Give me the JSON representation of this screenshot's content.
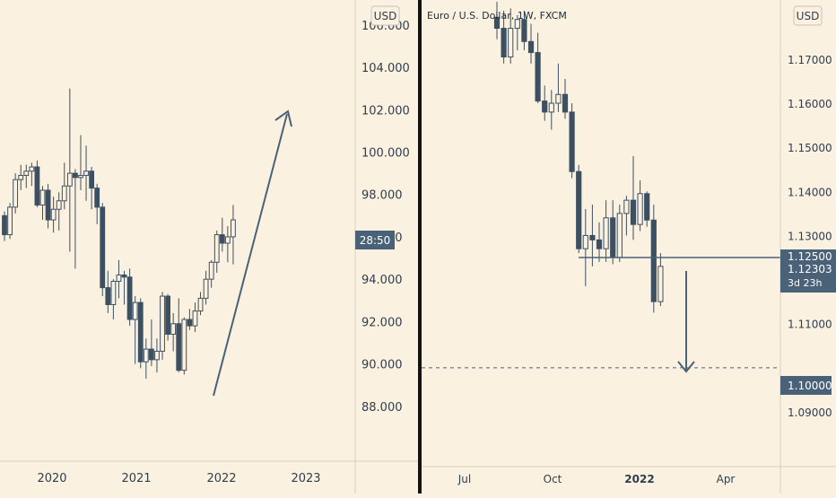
{
  "colors": {
    "background": "#fbf1e1",
    "candle": "#3d5062",
    "axis_text": "#2f3e4e",
    "price_tag_bg": "#4a6278",
    "price_tag_text": "#ffffff",
    "line": "#4a6278",
    "divider": "#131313"
  },
  "chart_data": [
    {
      "type": "candlestick",
      "title": "",
      "currency_label": "USD",
      "y_ticks": [
        "88.000",
        "90.000",
        "92.000",
        "94.000",
        "96.000",
        "98.000",
        "100.000",
        "102.000",
        "104.000"
      ],
      "top_partial_tick": "106.000",
      "x_ticks": [
        "2020",
        "2021",
        "2022",
        "2023"
      ],
      "ylim": [
        87.4,
        106.5
      ],
      "countdown_label": "28:50",
      "candles_start_index": 0,
      "ohlc": [
        [
          97.0,
          97.2,
          95.8,
          96.1
        ],
        [
          96.1,
          97.6,
          95.9,
          97.4
        ],
        [
          97.4,
          99.0,
          97.1,
          98.7
        ],
        [
          98.7,
          99.4,
          98.2,
          98.9
        ],
        [
          98.9,
          99.4,
          98.3,
          99.1
        ],
        [
          99.1,
          99.5,
          98.4,
          99.3
        ],
        [
          99.3,
          99.6,
          97.4,
          97.5
        ],
        [
          97.5,
          98.4,
          96.8,
          98.2
        ],
        [
          98.2,
          98.5,
          96.4,
          96.8
        ],
        [
          96.8,
          97.9,
          96.2,
          97.3
        ],
        [
          97.3,
          98.1,
          96.3,
          97.7
        ],
        [
          97.7,
          99.5,
          97.3,
          98.4
        ],
        [
          98.4,
          103.0,
          95.3,
          99.0
        ],
        [
          99.0,
          99.2,
          94.5,
          98.8
        ],
        [
          98.8,
          100.8,
          98.2,
          98.9
        ],
        [
          98.9,
          100.3,
          97.7,
          99.1
        ],
        [
          99.1,
          99.3,
          97.3,
          98.3
        ],
        [
          98.3,
          98.5,
          96.6,
          97.4
        ],
        [
          97.4,
          97.6,
          93.2,
          93.6
        ],
        [
          93.6,
          94.4,
          92.4,
          92.8
        ],
        [
          92.8,
          94.0,
          92.1,
          93.9
        ],
        [
          93.9,
          94.9,
          93.1,
          94.2
        ],
        [
          94.2,
          94.4,
          92.8,
          94.1
        ],
        [
          94.1,
          94.5,
          91.8,
          92.1
        ],
        [
          92.1,
          93.2,
          90.0,
          92.9
        ],
        [
          92.9,
          93.1,
          89.8,
          90.1
        ],
        [
          90.1,
          91.2,
          89.3,
          90.7
        ],
        [
          90.7,
          92.1,
          89.9,
          90.2
        ],
        [
          90.2,
          91.2,
          89.6,
          90.6
        ],
        [
          90.6,
          93.4,
          90.2,
          93.2
        ],
        [
          93.2,
          93.3,
          91.1,
          91.4
        ],
        [
          91.4,
          92.4,
          90.6,
          91.9
        ],
        [
          91.9,
          93.1,
          89.6,
          89.7
        ],
        [
          89.7,
          92.2,
          89.5,
          92.1
        ],
        [
          92.1,
          92.6,
          91.6,
          91.8
        ],
        [
          91.8,
          92.9,
          91.5,
          92.5
        ],
        [
          92.5,
          93.4,
          92.3,
          93.1
        ],
        [
          93.1,
          94.4,
          92.8,
          94.0
        ],
        [
          94.0,
          94.9,
          93.6,
          94.8
        ],
        [
          94.8,
          96.3,
          94.3,
          96.1
        ],
        [
          96.1,
          96.9,
          95.3,
          95.7
        ],
        [
          95.7,
          96.5,
          94.8,
          96.0
        ],
        [
          96.0,
          97.5,
          94.7,
          96.8
        ]
      ],
      "arrow": "up"
    },
    {
      "type": "candlestick",
      "title": "Euro / U.S. Dollar, 1W, FXCM",
      "currency_label": "USD",
      "y_ticks": [
        "1.09000",
        "1.10000",
        "1.11000",
        "1.13000",
        "1.14000",
        "1.15000",
        "1.16000",
        "1.17000"
      ],
      "x_ticks": [
        "Jul",
        "Oct",
        "2022",
        "Apr"
      ],
      "ylim": [
        1.0845,
        1.1767
      ],
      "price_tag": "1.12303",
      "price_tag_sub": "3d 23h",
      "level_tag_partial": "1.12500",
      "level_tag": "1.10000",
      "horizontal_line": 1.125,
      "dashed_line": 1.1,
      "ohlc": [
        [
          1.1795,
          1.183,
          1.1745,
          1.177
        ],
        [
          1.177,
          1.181,
          1.169,
          1.1705
        ],
        [
          1.1705,
          1.1815,
          1.169,
          1.177
        ],
        [
          1.177,
          1.18,
          1.172,
          1.179
        ],
        [
          1.179,
          1.181,
          1.172,
          1.174
        ],
        [
          1.174,
          1.178,
          1.169,
          1.1715
        ],
        [
          1.1715,
          1.176,
          1.16,
          1.1605
        ],
        [
          1.1605,
          1.164,
          1.156,
          1.158
        ],
        [
          1.158,
          1.163,
          1.154,
          1.16
        ],
        [
          1.16,
          1.169,
          1.158,
          1.162
        ],
        [
          1.162,
          1.1655,
          1.1565,
          1.158
        ],
        [
          1.158,
          1.16,
          1.143,
          1.1445
        ],
        [
          1.1445,
          1.146,
          1.126,
          1.127
        ],
        [
          1.127,
          1.136,
          1.1185,
          1.13
        ],
        [
          1.13,
          1.137,
          1.123,
          1.129
        ],
        [
          1.129,
          1.133,
          1.124,
          1.127
        ],
        [
          1.127,
          1.138,
          1.124,
          1.134
        ],
        [
          1.134,
          1.138,
          1.1235,
          1.125
        ],
        [
          1.125,
          1.137,
          1.124,
          1.135
        ],
        [
          1.135,
          1.139,
          1.13,
          1.138
        ],
        [
          1.138,
          1.148,
          1.129,
          1.1325
        ],
        [
          1.1325,
          1.1425,
          1.131,
          1.1395
        ],
        [
          1.1395,
          1.14,
          1.132,
          1.1335
        ],
        [
          1.1335,
          1.137,
          1.1125,
          1.115
        ],
        [
          1.115,
          1.126,
          1.114,
          1.123
        ]
      ],
      "arrow": "down"
    }
  ]
}
